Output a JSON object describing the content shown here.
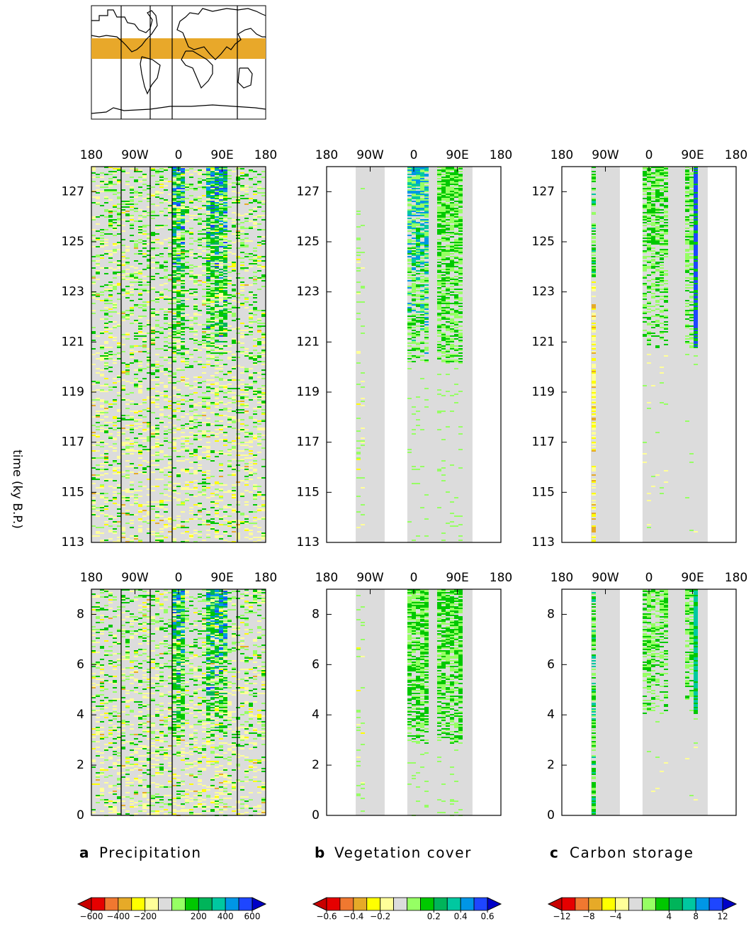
{
  "y_label": "time (ky B.P.)",
  "chart_data": [
    {
      "type": "heatmap",
      "xlim": [
        -180,
        180
      ],
      "xticks": [
        {
          "value": -180,
          "label": "180"
        },
        {
          "value": -90,
          "label": "90W"
        },
        0,
        {
          "value": 90,
          "label": "90E"
        },
        {
          "value": 180,
          "label": "180"
        }
      ],
      "ylim": [
        113,
        128
      ],
      "yticks": [
        113,
        115,
        117,
        119,
        121,
        123,
        125,
        127
      ]
    },
    {
      "type": "heatmap",
      "xlim": [
        -180,
        180
      ],
      "xticks": [
        {
          "value": -180,
          "label": "180"
        },
        {
          "value": -90,
          "label": "90W"
        },
        0,
        {
          "value": 90,
          "label": "90E"
        },
        {
          "value": 180,
          "label": "180"
        }
      ],
      "ylim": [
        113,
        128
      ],
      "yticks": [
        113,
        115,
        117,
        119,
        121,
        123,
        125,
        127
      ]
    },
    {
      "type": "heatmap",
      "xlim": [
        -180,
        180
      ],
      "xticks": [
        {
          "value": -180,
          "label": "180"
        },
        {
          "value": -90,
          "label": "90W"
        },
        0,
        {
          "value": 90,
          "label": "90E"
        },
        {
          "value": 180,
          "label": "180"
        }
      ],
      "ylim": [
        113,
        128
      ],
      "yticks": [
        113,
        115,
        117,
        119,
        121,
        123,
        125,
        127
      ]
    },
    {
      "type": "heatmap",
      "xlim": [
        -180,
        180
      ],
      "xticks": [
        {
          "value": -180,
          "label": "180"
        },
        {
          "value": -90,
          "label": "90W"
        },
        0,
        {
          "value": 90,
          "label": "90E"
        },
        {
          "value": 180,
          "label": "180"
        }
      ],
      "ylim": [
        0,
        9
      ],
      "yticks": [
        0,
        2,
        4,
        6,
        8
      ]
    },
    {
      "type": "heatmap",
      "xlim": [
        -180,
        180
      ],
      "xticks": [
        {
          "value": -180,
          "label": "180"
        },
        {
          "value": -90,
          "label": "90W"
        },
        0,
        {
          "value": 90,
          "label": "90E"
        },
        {
          "value": 180,
          "label": "180"
        }
      ],
      "ylim": [
        0,
        9
      ],
      "yticks": [
        0,
        2,
        4,
        6,
        8
      ]
    },
    {
      "type": "heatmap",
      "xlim": [
        -180,
        180
      ],
      "xticks": [
        {
          "value": -180,
          "label": "180"
        },
        {
          "value": -90,
          "label": "90W"
        },
        0,
        {
          "value": 90,
          "label": "90E"
        },
        {
          "value": 180,
          "label": "180"
        }
      ],
      "ylim": [
        0,
        9
      ],
      "yticks": [
        0,
        2,
        4,
        6,
        8
      ]
    }
  ],
  "columns": [
    {
      "letter": "a",
      "title": "Precipitation",
      "colorbar": {
        "lim": [
          -600,
          600
        ],
        "ticks": [
          {
            "value": -600,
            "label": "−600"
          },
          {
            "value": -400,
            "label": "−400"
          },
          {
            "value": -200,
            "label": "−200"
          },
          200,
          400,
          600
        ]
      }
    },
    {
      "letter": "b",
      "title": "Vegetation cover",
      "colorbar": {
        "lim": [
          -0.6,
          0.6
        ],
        "ticks": [
          {
            "value": -0.6,
            "label": "−0.6"
          },
          {
            "value": -0.4,
            "label": "−0.4"
          },
          {
            "value": -0.2,
            "label": "−0.2"
          },
          0.2,
          0.4,
          0.6
        ]
      }
    },
    {
      "letter": "c",
      "title": "Carbon storage",
      "colorbar": {
        "lim": [
          -12,
          12
        ],
        "ticks": [
          {
            "value": -12,
            "label": "−12"
          },
          {
            "value": -8,
            "label": "−8"
          },
          {
            "value": -4,
            "label": "−4"
          },
          4,
          8,
          12
        ]
      }
    }
  ],
  "palette": {
    "low_end": "#c80000",
    "high_end": "#0000c8",
    "colors": [
      "#e60000",
      "#f07830",
      "#e6aa28",
      "#ffff00",
      "#ffff99",
      "#dcdcdc",
      "#96ff64",
      "#00c800",
      "#00b45a",
      "#00c8a0",
      "#0096e6",
      "#1e46ff"
    ]
  },
  "band_color": "#e8a82a",
  "background_color": "#dcdcdc"
}
